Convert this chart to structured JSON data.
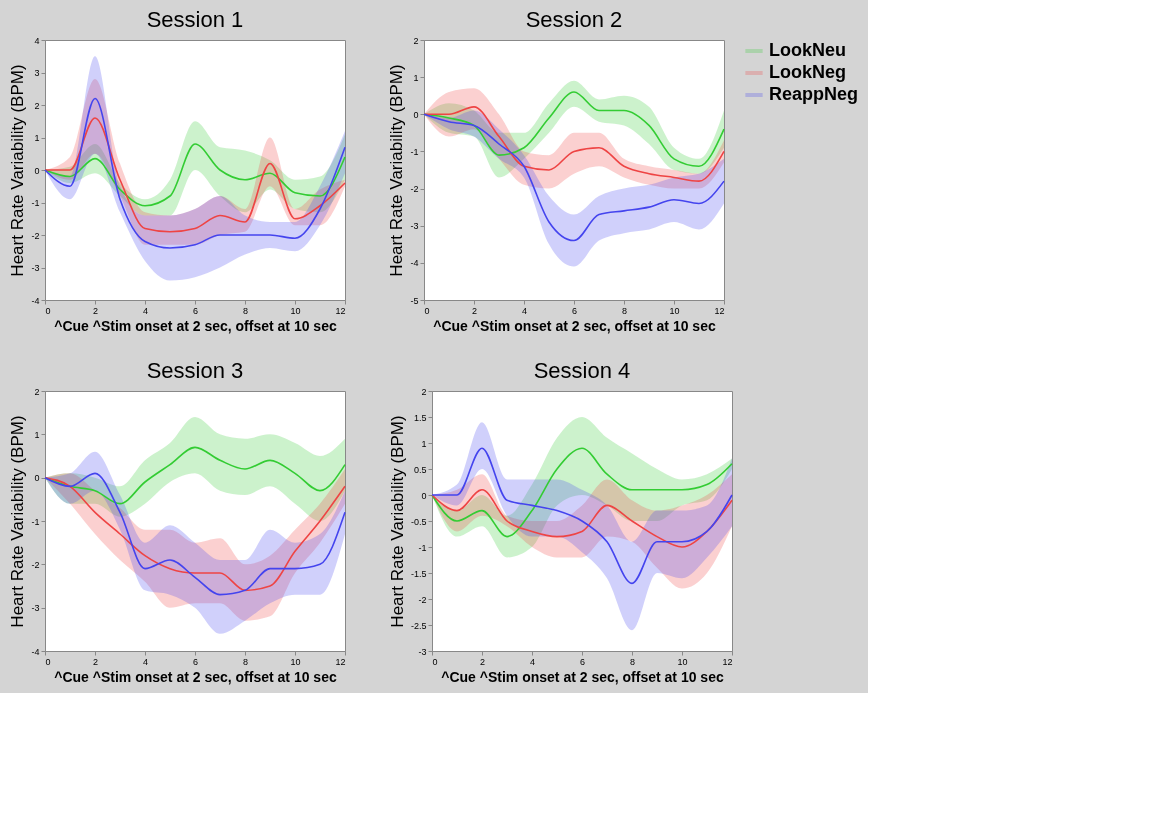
{
  "chart_data": [
    {
      "type": "line",
      "title": "Session 1",
      "xlabel": "^Cue  ^Stim onset at 2 sec, offset at 10 sec",
      "ylabel": "Heart Rate Variability (BPM)",
      "x": [
        0,
        1,
        2,
        3,
        4,
        5,
        6,
        7,
        8,
        9,
        10,
        11,
        12
      ],
      "xlim": [
        0,
        12
      ],
      "xticks": [
        0,
        2,
        4,
        6,
        8,
        10,
        12
      ],
      "ylim": [
        -4,
        4
      ],
      "yticks": [
        -4,
        -3,
        -2,
        -1,
        0,
        1,
        2,
        3,
        4
      ],
      "grid": false,
      "legend": false,
      "series": [
        {
          "color": "#33cc33",
          "values": [
            0,
            -0.2,
            0.35,
            -0.6,
            -1.1,
            -0.8,
            0.8,
            0,
            -0.3,
            -0.1,
            -0.7,
            -0.8,
            0.4
          ],
          "lower": [
            0,
            -0.4,
            -0.1,
            -0.8,
            -1.4,
            -1.4,
            0.0,
            -0.8,
            -1.3,
            -0.6,
            -1.2,
            -1.3,
            -0.3
          ],
          "upper": [
            0,
            0.1,
            0.8,
            -0.4,
            -0.9,
            -0.3,
            1.5,
            0.7,
            0.6,
            0.3,
            -0.3,
            -0.2,
            1.1
          ]
        },
        {
          "color": "#ee4444",
          "values": [
            0,
            0,
            1.6,
            -0.3,
            -1.8,
            -1.9,
            -1.8,
            -1.4,
            -1.6,
            0.2,
            -1.5,
            -1.1,
            -0.4
          ],
          "lower": [
            0,
            -0.3,
            0.5,
            -0.8,
            -2.3,
            -2.3,
            -2.3,
            -2.0,
            -1.9,
            -0.5,
            -1.7,
            -1.7,
            -0.5
          ],
          "upper": [
            0,
            0.4,
            2.8,
            0.2,
            -1.3,
            -1.4,
            -1.2,
            -0.8,
            -1.2,
            1.0,
            -1.2,
            -0.6,
            -0.3
          ]
        },
        {
          "color": "#4444ee",
          "values": [
            0,
            -0.5,
            2.2,
            -0.9,
            -2.2,
            -2.4,
            -2.3,
            -2.0,
            -2.0,
            -2.0,
            -2.1,
            -1.2,
            0.7
          ],
          "lower": [
            0,
            -0.9,
            0.5,
            -1.3,
            -2.8,
            -3.4,
            -3.3,
            -3.0,
            -2.6,
            -2.4,
            -2.5,
            -1.7,
            -0.1
          ],
          "upper": [
            0,
            -0.2,
            3.5,
            -0.5,
            -1.4,
            -1.4,
            -1.2,
            -0.8,
            -1.4,
            -1.6,
            -1.6,
            -0.5,
            1.2
          ]
        }
      ]
    },
    {
      "type": "line",
      "title": "Session 2",
      "xlabel": "^Cue  ^Stim onset at 2 sec, offset at 10 sec",
      "ylabel": "Heart Rate Variability (BPM)",
      "x": [
        0,
        1,
        2,
        3,
        4,
        5,
        6,
        7,
        8,
        9,
        10,
        11,
        12
      ],
      "xlim": [
        0,
        12
      ],
      "xticks": [
        0,
        2,
        4,
        6,
        8,
        10,
        12
      ],
      "ylim": [
        -5,
        2
      ],
      "yticks": [
        -5,
        -4,
        -3,
        -2,
        -1,
        0,
        1,
        2
      ],
      "grid": false,
      "legend": "right",
      "series": [
        {
          "name": "LookNeu",
          "color": "#33cc33",
          "values": [
            0,
            -0.1,
            -0.3,
            -1.1,
            -0.9,
            -0.1,
            0.6,
            0.1,
            0.1,
            -0.3,
            -1.2,
            -1.4,
            -0.4
          ],
          "lower": [
            0,
            -0.5,
            -0.6,
            -1.7,
            -1.2,
            -0.5,
            0.2,
            -0.2,
            -0.3,
            -0.8,
            -1.5,
            -1.6,
            -0.9
          ],
          "upper": [
            0,
            0.3,
            0.1,
            -0.5,
            -0.5,
            0.3,
            0.9,
            0.4,
            0.5,
            0.2,
            -0.9,
            -1.2,
            0.1
          ]
        },
        {
          "name": "LookNeg",
          "color": "#ee4444",
          "values": [
            0,
            0,
            0.2,
            -0.6,
            -1.4,
            -1.5,
            -1.0,
            -0.9,
            -1.4,
            -1.6,
            -1.7,
            -1.8,
            -1.0
          ],
          "lower": [
            0,
            -0.6,
            -0.4,
            -1.2,
            -1.9,
            -2.0,
            -1.6,
            -1.4,
            -1.7,
            -1.9,
            -2.0,
            -2.0,
            -1.3
          ],
          "upper": [
            0,
            0.6,
            0.7,
            0,
            -1.0,
            -1.1,
            -0.5,
            -0.5,
            -1.2,
            -1.4,
            -1.5,
            -1.6,
            -0.7
          ]
        },
        {
          "name": "ReappNeg",
          "color": "#4444ee",
          "values": [
            0,
            -0.2,
            -0.3,
            -0.8,
            -1.4,
            -2.9,
            -3.4,
            -2.7,
            -2.6,
            -2.5,
            -2.3,
            -2.4,
            -1.8
          ],
          "lower": [
            0,
            -0.4,
            -0.6,
            -1.2,
            -1.7,
            -3.5,
            -4.1,
            -3.4,
            -3.2,
            -3.1,
            -2.9,
            -3.1,
            -2.4
          ],
          "upper": [
            0,
            -0.1,
            0.1,
            -0.4,
            -1.1,
            -2.2,
            -2.7,
            -2.2,
            -2.0,
            -1.9,
            -1.7,
            -1.6,
            -1.2
          ]
        }
      ]
    },
    {
      "type": "line",
      "title": "Session 3",
      "xlabel": "^Cue  ^Stim onset at 2 sec, offset at 10 sec",
      "ylabel": "Heart Rate Variability (BPM)",
      "x": [
        0,
        1,
        2,
        3,
        4,
        5,
        6,
        7,
        8,
        9,
        10,
        11,
        12
      ],
      "xlim": [
        0,
        12
      ],
      "xticks": [
        0,
        2,
        4,
        6,
        8,
        10,
        12
      ],
      "ylim": [
        -4,
        2
      ],
      "yticks": [
        -4,
        -3,
        -2,
        -1,
        0,
        1,
        2
      ],
      "grid": false,
      "legend": false,
      "series": [
        {
          "color": "#33cc33",
          "values": [
            0,
            -0.2,
            -0.3,
            -0.6,
            -0.1,
            0.3,
            0.7,
            0.4,
            0.2,
            0.4,
            0.1,
            -0.3,
            0.3
          ],
          "lower": [
            0,
            -0.6,
            -0.6,
            -0.9,
            -0.6,
            -0.1,
            0.1,
            -0.3,
            -0.4,
            -0.2,
            -0.6,
            -1.0,
            -0.3
          ],
          "upper": [
            0,
            0.1,
            0.0,
            -0.2,
            0.4,
            0.8,
            1.4,
            1.0,
            0.9,
            1.0,
            0.8,
            0.5,
            0.9
          ]
        },
        {
          "color": "#ee4444",
          "values": [
            0,
            -0.2,
            -0.8,
            -1.3,
            -1.8,
            -2.1,
            -2.2,
            -2.2,
            -2.6,
            -2.5,
            -1.7,
            -1.0,
            -0.2
          ],
          "lower": [
            0,
            -0.6,
            -1.3,
            -1.9,
            -2.4,
            -3.0,
            -2.9,
            -2.9,
            -3.3,
            -3.2,
            -2.2,
            -1.5,
            -0.6
          ],
          "upper": [
            0,
            0.1,
            -0.3,
            -0.7,
            -1.2,
            -1.2,
            -1.5,
            -1.4,
            -2.0,
            -1.8,
            -1.2,
            -0.6,
            0.2
          ]
        },
        {
          "color": "#4444ee",
          "values": [
            0,
            -0.2,
            0.1,
            -0.8,
            -2.1,
            -1.9,
            -2.3,
            -2.7,
            -2.6,
            -2.1,
            -2.1,
            -2.0,
            -0.8
          ],
          "lower": [
            0,
            -0.6,
            -0.3,
            -1.2,
            -2.6,
            -2.7,
            -3.0,
            -3.6,
            -3.3,
            -2.9,
            -2.7,
            -2.7,
            -1.3
          ],
          "upper": [
            0,
            0.1,
            0.6,
            -0.4,
            -1.5,
            -1.1,
            -1.5,
            -1.9,
            -1.9,
            -1.2,
            -1.5,
            -1.3,
            -0.3
          ]
        }
      ]
    },
    {
      "type": "line",
      "title": "Session 4",
      "xlabel": "^Cue  ^Stim onset at 2 sec, offset at 10 sec",
      "ylabel": "Heart Rate Variability (BPM)",
      "x": [
        0,
        1,
        2,
        3,
        4,
        5,
        6,
        7,
        8,
        9,
        10,
        11,
        12
      ],
      "xlim": [
        0,
        12
      ],
      "xticks": [
        0,
        2,
        4,
        6,
        8,
        10,
        12
      ],
      "ylim": [
        -3,
        2
      ],
      "yticks": [
        -3,
        -2.5,
        -2,
        -1.5,
        -1,
        -0.5,
        0,
        0.5,
        1,
        1.5,
        2
      ],
      "grid": false,
      "legend": false,
      "series": [
        {
          "color": "#33cc33",
          "values": [
            0,
            -0.5,
            -0.3,
            -0.8,
            -0.3,
            0.5,
            0.9,
            0.4,
            0.1,
            0.1,
            0.1,
            0.2,
            0.6
          ],
          "lower": [
            0,
            -0.8,
            -0.6,
            -1.2,
            -1.0,
            -0.2,
            0.0,
            -0.2,
            -0.5,
            -0.5,
            -0.2,
            -0.1,
            0.5
          ],
          "upper": [
            0,
            -0.3,
            0.0,
            -0.4,
            0.2,
            1.1,
            1.5,
            1.1,
            0.8,
            0.5,
            0.3,
            0.4,
            0.7
          ]
        },
        {
          "color": "#ee4444",
          "values": [
            0,
            -0.3,
            0.1,
            -0.5,
            -0.7,
            -0.8,
            -0.7,
            -0.2,
            -0.5,
            -0.8,
            -1.0,
            -0.7,
            -0.1
          ],
          "lower": [
            0,
            -0.7,
            -0.4,
            -0.6,
            -1.0,
            -1.2,
            -1.2,
            -0.8,
            -0.9,
            -1.4,
            -1.8,
            -1.5,
            -0.6
          ],
          "upper": [
            0,
            0.1,
            0.4,
            -0.4,
            -0.5,
            -0.5,
            -0.2,
            0.3,
            -0.1,
            -0.3,
            -0.2,
            0.0,
            0.4
          ]
        },
        {
          "color": "#4444ee",
          "values": [
            0,
            0.0,
            0.9,
            -0.1,
            -0.2,
            -0.3,
            -0.5,
            -0.9,
            -1.7,
            -0.9,
            -0.9,
            -0.7,
            0.0
          ],
          "lower": [
            0,
            -0.2,
            0.5,
            -0.4,
            -0.8,
            -0.8,
            -1.1,
            -1.6,
            -2.6,
            -1.5,
            -1.6,
            -1.2,
            -0.6
          ],
          "upper": [
            0,
            0.2,
            1.4,
            0.3,
            0.3,
            0.3,
            0.1,
            -0.2,
            -0.9,
            -0.3,
            -0.3,
            -0.2,
            0.7
          ]
        }
      ]
    }
  ]
}
